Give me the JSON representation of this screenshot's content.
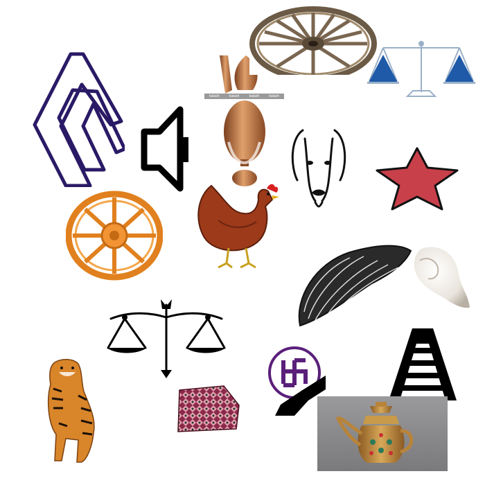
{
  "canvas": {
    "background": "#ffffff"
  },
  "symbols": [
    {
      "name": "zigzag-c-logo-icon",
      "color": "#2a1a66"
    },
    {
      "name": "speaker-icon",
      "color": "#000000"
    },
    {
      "name": "copper-kalash-icon",
      "color": "#b06a3a",
      "overlay_labels": [
        "kalash",
        "kalash",
        "kalash",
        "kalash"
      ]
    },
    {
      "name": "cart-wheel-icon",
      "color": "#6b5a45"
    },
    {
      "name": "balance-scale-blue-icon",
      "color": "#1e5aa8"
    },
    {
      "name": "dog-face-icon",
      "color": "#111111"
    },
    {
      "name": "red-star-icon",
      "color": "#c8404a"
    },
    {
      "name": "orange-dharma-wheel-icon",
      "color": "#e0801e"
    },
    {
      "name": "hen-icon",
      "color": "#9c3a1a"
    },
    {
      "name": "conch-shell-engraving-icon",
      "color": "#1a1a1a"
    },
    {
      "name": "white-conch-shell-icon",
      "color": "#e9e4dc"
    },
    {
      "name": "scale-arrow-icon",
      "color": "#000000"
    },
    {
      "name": "ladder-icon",
      "color": "#000000"
    },
    {
      "name": "swastika-circle-icon",
      "color": "#5a1f7a"
    },
    {
      "name": "tiger-icon",
      "color": "#d9852a"
    },
    {
      "name": "dhaka-topi-cap-icon",
      "color": "#8a2a4a"
    },
    {
      "name": "ornate-teapot-icon",
      "color": "#b8843a"
    }
  ]
}
